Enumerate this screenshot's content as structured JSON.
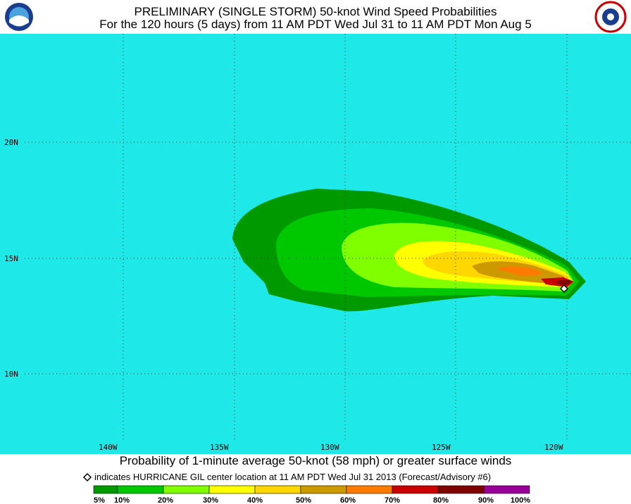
{
  "header": {
    "title": "PRELIMINARY (SINGLE STORM) 50-knot Wind Speed Probabilities",
    "subtitle": "For the 120 hours (5 days) from 11 AM PDT Wed Jul 31 to 11 AM PDT Mon Aug 5"
  },
  "map": {
    "lon_labels": [
      "140W",
      "135W",
      "130W",
      "125W",
      "120W"
    ],
    "lat_labels": [
      "20N",
      "15N",
      "10N"
    ]
  },
  "footer": {
    "caption": "Probability of 1-minute average 50-knot (58 mph) or greater surface winds",
    "note": "indicates HURRICANE GIL center location at 11 AM PDT Wed Jul 31 2013 (Forecast/Advisory #6)"
  },
  "legend": {
    "labels": [
      "5%",
      "10%",
      "20%",
      "30%",
      "40%",
      "50%",
      "60%",
      "70%",
      "80%",
      "90%",
      "100%"
    ],
    "colors": [
      "#009900",
      "#00c800",
      "#80ff00",
      "#ffff00",
      "#ffd700",
      "#cc9900",
      "#ff7a00",
      "#cc0000",
      "#800000",
      "#990099"
    ]
  }
}
